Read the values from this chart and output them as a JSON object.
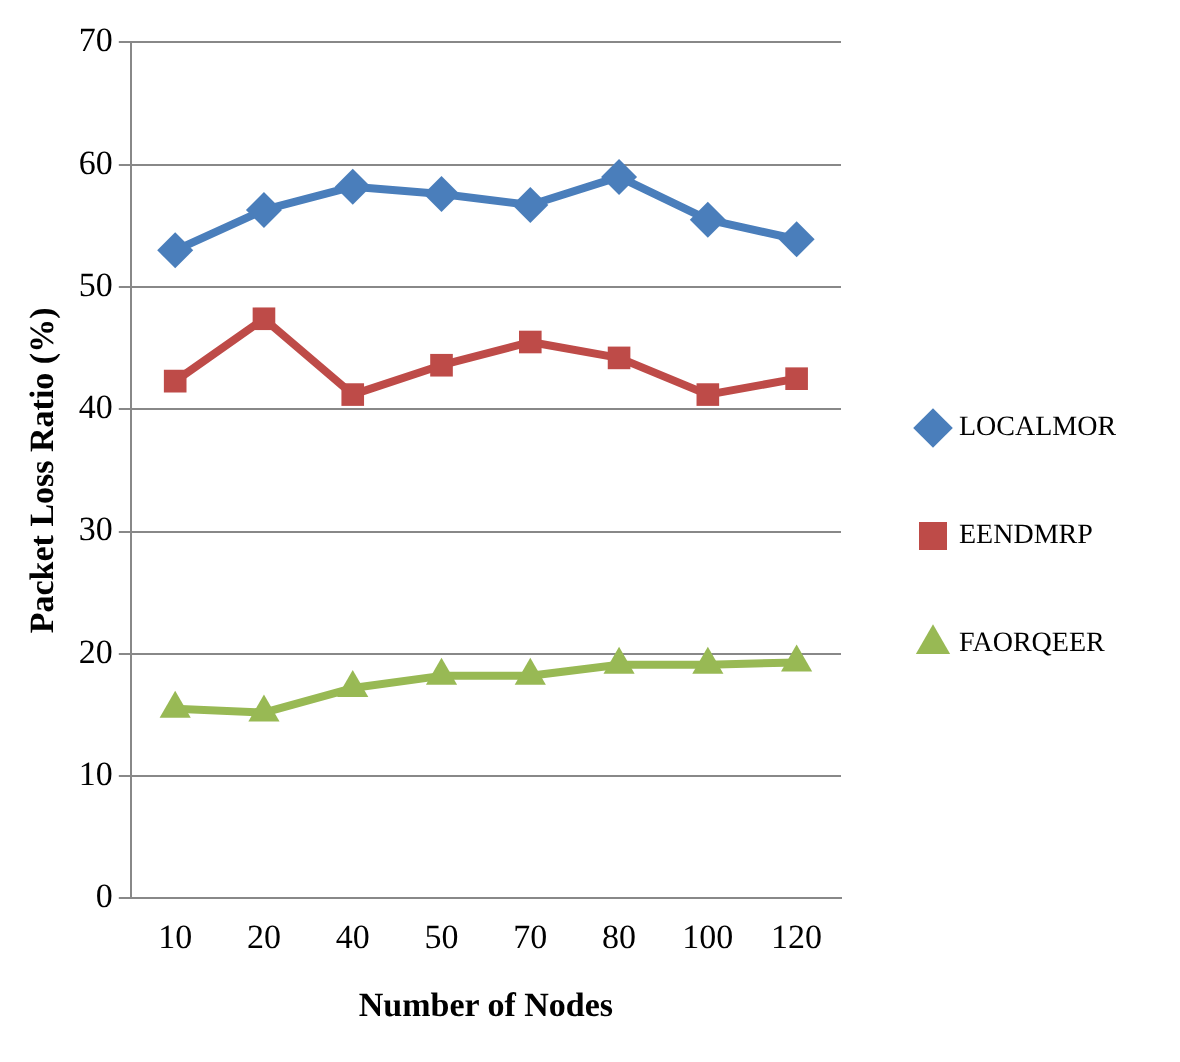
{
  "chart_data": {
    "type": "line",
    "xlabel": "Number of Nodes",
    "ylabel": "Packet Loss Ratio (%)",
    "categories": [
      "10",
      "20",
      "40",
      "50",
      "70",
      "80",
      "100",
      "120"
    ],
    "series": [
      {
        "name": "LOCALMOR",
        "color": "#4a7ebb",
        "marker": "diamond",
        "values": [
          53.0,
          56.3,
          58.2,
          57.6,
          56.7,
          59.0,
          55.5,
          53.9
        ]
      },
      {
        "name": "EENDMRP",
        "color": "#be4b48",
        "marker": "square",
        "values": [
          42.3,
          47.4,
          41.2,
          43.6,
          45.5,
          44.2,
          41.2,
          42.5
        ]
      },
      {
        "name": "FAORQEER",
        "color": "#98b954",
        "marker": "triangle",
        "values": [
          15.5,
          15.2,
          17.2,
          18.2,
          18.2,
          19.1,
          19.1,
          19.3
        ]
      }
    ],
    "ylim": [
      0,
      70
    ],
    "yticks": [
      0,
      10,
      20,
      30,
      40,
      50,
      60,
      70
    ],
    "grid": "y",
    "legend": "right",
    "line_style": "solid"
  }
}
